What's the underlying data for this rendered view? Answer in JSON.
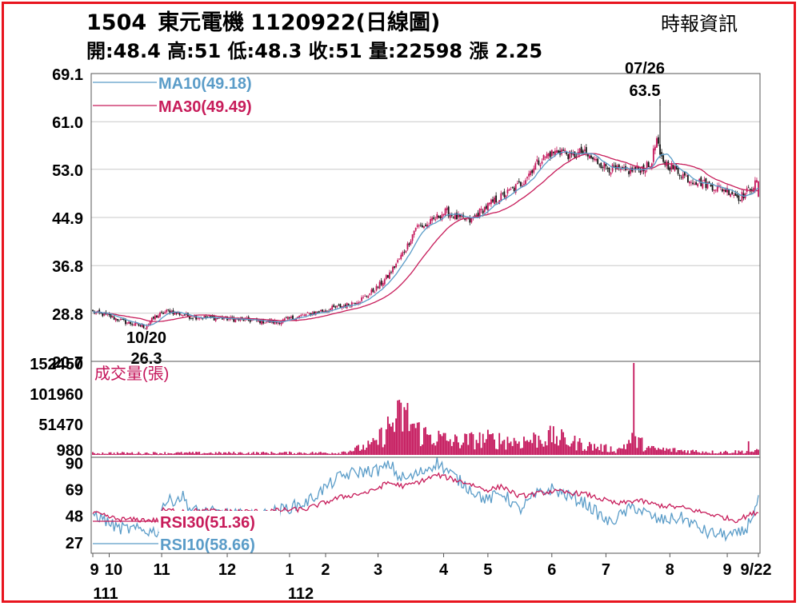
{
  "header": {
    "code": "1504",
    "name": "東元電機",
    "date_tag": "1120922(日線圖)",
    "quote": "開:48.4 高:51 低:48.3 收:51 量:22598 漲 2.25",
    "source": "時報資訊"
  },
  "chart_data": [
    {
      "type": "candlestick",
      "panel": "price",
      "y_ticks": [
        "69.1",
        "61.0",
        "53.0",
        "44.9",
        "36.8",
        "28.8",
        "20.7"
      ],
      "ylim": [
        20.7,
        69.1
      ],
      "grid": true,
      "legend": [
        {
          "label": "MA10(49.18)",
          "color": "#5a9cc8"
        },
        {
          "label": "MA30(49.49)",
          "color": "#c71c5a"
        }
      ],
      "annotations": [
        {
          "date": "10/20",
          "value": "26.3",
          "date_label": "10/20",
          "value_label": "26.3"
        },
        {
          "date": "07/26",
          "value": "63.5",
          "date_label": "07/26",
          "value_label": "63.5"
        }
      ],
      "up_color": "#c4145a",
      "down_color": "#111111",
      "approx_close_keypoints": [
        [
          0,
          29.0
        ],
        [
          10,
          28.3
        ],
        [
          20,
          27.3
        ],
        [
          32,
          26.5
        ],
        [
          38,
          28.2
        ],
        [
          46,
          29.2
        ],
        [
          60,
          28.2
        ],
        [
          80,
          27.9
        ],
        [
          100,
          27.5
        ],
        [
          112,
          27.3
        ],
        [
          125,
          28.2
        ],
        [
          140,
          29.2
        ],
        [
          155,
          30.2
        ],
        [
          165,
          31.3
        ],
        [
          173,
          33.0
        ],
        [
          180,
          35.0
        ],
        [
          186,
          37.5
        ],
        [
          192,
          40.2
        ],
        [
          197,
          43.3
        ],
        [
          204,
          43.6
        ],
        [
          212,
          45.4
        ],
        [
          216,
          45.9
        ],
        [
          222,
          44.9
        ],
        [
          230,
          44.3
        ],
        [
          236,
          45.8
        ],
        [
          245,
          47.7
        ],
        [
          254,
          49.2
        ],
        [
          262,
          50.8
        ],
        [
          270,
          53.8
        ],
        [
          278,
          55.6
        ],
        [
          286,
          56.2
        ],
        [
          292,
          55.1
        ],
        [
          298,
          55.9
        ],
        [
          306,
          54.5
        ],
        [
          316,
          53.1
        ],
        [
          324,
          52.6
        ],
        [
          332,
          53.0
        ],
        [
          340,
          53.6
        ],
        [
          344,
          58.0
        ],
        [
          346,
          55.0
        ],
        [
          350,
          53.9
        ],
        [
          358,
          52.4
        ],
        [
          364,
          51.3
        ],
        [
          372,
          50.7
        ],
        [
          380,
          50.0
        ],
        [
          388,
          49.4
        ],
        [
          394,
          48.3
        ],
        [
          398,
          48.9
        ],
        [
          402,
          50.0
        ],
        [
          406,
          51.0
        ]
      ],
      "ma10": {
        "name": "MA10",
        "last": 49.18
      },
      "ma30": {
        "name": "MA30",
        "last": 49.49
      }
    },
    {
      "type": "bar",
      "panel": "volume",
      "title": "成交量(張)",
      "y_ticks": [
        "152450",
        "101960",
        "51470",
        "980"
      ],
      "ylim": [
        0,
        152450
      ],
      "color": "#c4145a",
      "bars": [
        [
          330,
          152450
        ],
        [
          400,
          22598
        ]
      ],
      "approx_profile": [
        [
          0,
          3000
        ],
        [
          150,
          3500
        ],
        [
          160,
          9000
        ],
        [
          172,
          18000
        ],
        [
          182,
          50000
        ],
        [
          190,
          65000
        ],
        [
          200,
          35000
        ],
        [
          220,
          22000
        ],
        [
          240,
          26000
        ],
        [
          260,
          22000
        ],
        [
          280,
          30000
        ],
        [
          300,
          16000
        ],
        [
          320,
          8000
        ],
        [
          330,
          26000
        ],
        [
          340,
          10000
        ],
        [
          360,
          7000
        ],
        [
          380,
          4500
        ],
        [
          406,
          6000
        ]
      ]
    },
    {
      "type": "line",
      "panel": "rsi",
      "y_ticks": [
        "90",
        "69",
        "48",
        "27"
      ],
      "ylim": [
        18,
        94
      ],
      "series": [
        {
          "name": "RSI30(51.36)",
          "color": "#c71c5a",
          "keypoints": [
            [
              0,
              50
            ],
            [
              15,
              45
            ],
            [
              40,
              44
            ],
            [
              42,
              52
            ],
            [
              100,
              51
            ],
            [
              130,
              53
            ],
            [
              150,
              62
            ],
            [
              170,
              67
            ],
            [
              180,
              74
            ],
            [
              190,
              71
            ],
            [
              200,
              75
            ],
            [
              210,
              80
            ],
            [
              230,
              73
            ],
            [
              240,
              68
            ],
            [
              250,
              71
            ],
            [
              260,
              63
            ],
            [
              280,
              67
            ],
            [
              300,
              65
            ],
            [
              320,
              57
            ],
            [
              332,
              60
            ],
            [
              345,
              56
            ],
            [
              360,
              54
            ],
            [
              380,
              48
            ],
            [
              392,
              44
            ],
            [
              398,
              47
            ],
            [
              406,
              51
            ]
          ]
        },
        {
          "name": "RSI10(58.66)",
          "color": "#5a9cc8",
          "keypoints": [
            [
              0,
              50
            ],
            [
              15,
              38
            ],
            [
              40,
              35
            ],
            [
              42,
              57
            ],
            [
              55,
              63
            ],
            [
              60,
              52
            ],
            [
              100,
              47
            ],
            [
              130,
              58
            ],
            [
              150,
              78
            ],
            [
              160,
              82
            ],
            [
              175,
              84
            ],
            [
              182,
              88
            ],
            [
              186,
              79
            ],
            [
              192,
              77
            ],
            [
              200,
              82
            ],
            [
              210,
              90
            ],
            [
              225,
              74
            ],
            [
              240,
              60
            ],
            [
              250,
              66
            ],
            [
              260,
              52
            ],
            [
              270,
              64
            ],
            [
              280,
              69
            ],
            [
              300,
              58
            ],
            [
              315,
              42
            ],
            [
              330,
              55
            ],
            [
              345,
              44
            ],
            [
              360,
              46
            ],
            [
              375,
              34
            ],
            [
              392,
              32
            ],
            [
              398,
              36
            ],
            [
              406,
              59
            ]
          ]
        }
      ],
      "legend": [
        {
          "label": "RSI30(51.36)",
          "color": "#c71c5a"
        },
        {
          "label": "RSI10(58.66)",
          "color": "#5a9cc8"
        }
      ]
    }
  ],
  "x_axis": {
    "month_labels": [
      "9",
      "10",
      "11",
      "12",
      "1",
      "2",
      "3",
      "4",
      "5",
      "6",
      "7",
      "8",
      "9",
      "9/22"
    ],
    "year_labels": [
      "111",
      "112"
    ],
    "month_label_days": [
      0,
      10,
      42,
      82,
      120,
      142,
      174,
      214,
      241,
      280,
      313,
      352,
      387,
      406
    ]
  }
}
